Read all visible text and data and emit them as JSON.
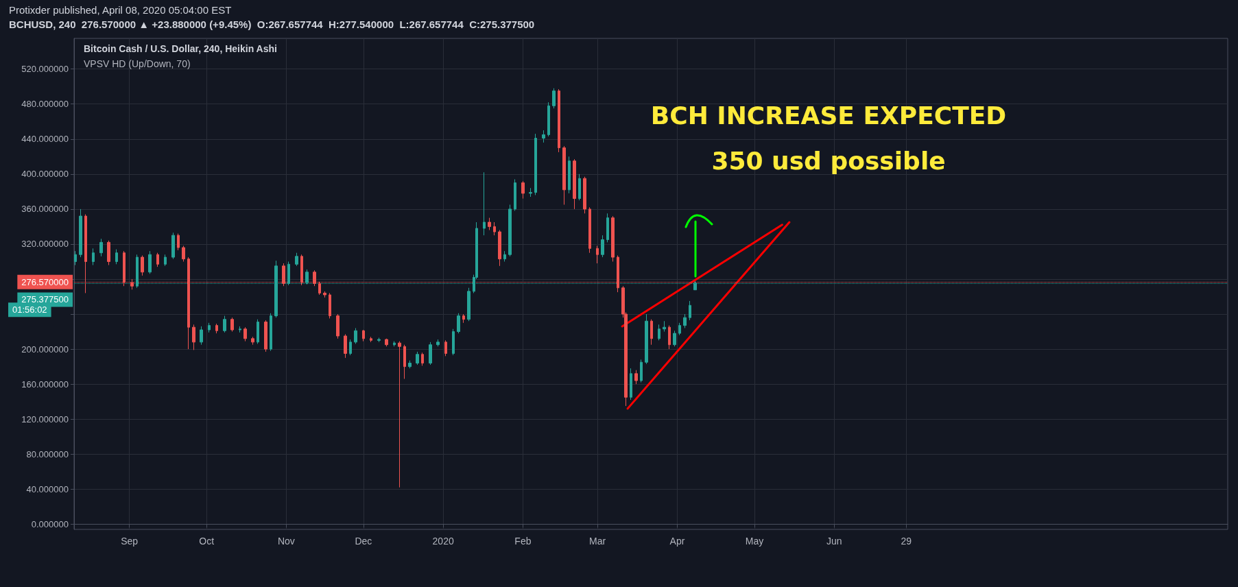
{
  "chart_data": {
    "type": "candlestick",
    "title": "Protixder published, April 08, 2020 05:04:00 EST",
    "subtitle": "BCHUSD, 240  276.570000 ▲ +23.880000 (+9.45%)  O:267.657744  H:277.540000  L:267.657744  C:275.377500",
    "annotations": [
      "Bitcoin Cash / U.S. Dollar, 240, Heikin Ashi",
      "VPSV HD (Up/Down, 70)",
      "BCH INCREASE EXPECTED",
      "350 usd possible",
      "01:56:02"
    ],
    "xlim": [
      "2019-08-10T12:00",
      "2020-11-01"
    ],
    "xticks": [
      {
        "value": "2019-09-01",
        "label": "Sep"
      },
      {
        "value": "2019-10-01",
        "label": "Oct"
      },
      {
        "value": "2019-11-01",
        "label": "Nov"
      },
      {
        "value": "2019-12-01",
        "label": "Dec"
      },
      {
        "value": "2020-01-01",
        "label": "2020"
      },
      {
        "value": "2020-02-01",
        "label": "Feb"
      },
      {
        "value": "2020-03-01",
        "label": "Mar"
      },
      {
        "value": "2020-04-01",
        "label": "Apr"
      },
      {
        "value": "2020-05-01",
        "label": "May"
      },
      {
        "value": "2020-06-01",
        "label": "Jun"
      },
      {
        "value": "2020-06-29",
        "label": "29"
      }
    ],
    "ylim": [
      -6,
      555
    ],
    "yticks": [
      {
        "value": 0,
        "label": "0.000000"
      },
      {
        "value": 40,
        "label": "40.000000"
      },
      {
        "value": 80,
        "label": "80.000000"
      },
      {
        "value": 120,
        "label": "120.000000"
      },
      {
        "value": 160,
        "label": "160.000000"
      },
      {
        "value": 200,
        "label": "200.000000"
      },
      {
        "value": 240,
        "label": null
      },
      {
        "value": 280,
        "label": null
      },
      {
        "value": 320,
        "label": "320.000000"
      },
      {
        "value": 360,
        "label": "360.000000"
      },
      {
        "value": 400,
        "label": "400.000000"
      },
      {
        "value": 440,
        "label": "440.000000"
      },
      {
        "value": 480,
        "label": "480.000000"
      },
      {
        "value": 520,
        "label": "520.000000"
      }
    ],
    "grid": true,
    "ref_lines": [
      {
        "axis": "y",
        "value": 276.57,
        "label": "276.570000",
        "color": "#ef5350",
        "line_style": "dotted"
      },
      {
        "axis": "y",
        "value": 275.3775,
        "label": "275.377500",
        "color": "#26a69a",
        "line_style": "dotted"
      }
    ],
    "series": [
      {
        "x": [
          "2019-08-11",
          "2019-08-13",
          "2019-08-15",
          "2019-08-18",
          "2019-08-21",
          "2019-08-24",
          "2019-08-27",
          "2019-08-30",
          "2019-09-02",
          "2019-09-04",
          "2019-09-06",
          "2019-09-09",
          "2019-09-12",
          "2019-09-15",
          "2019-09-18",
          "2019-09-20",
          "2019-09-22",
          "2019-09-24",
          "2019-09-26",
          "2019-09-29",
          "2019-10-02",
          "2019-10-05",
          "2019-10-08",
          "2019-10-11",
          "2019-10-14",
          "2019-10-16",
          "2019-10-19",
          "2019-10-21",
          "2019-10-24",
          "2019-10-26",
          "2019-10-28",
          "2019-10-31",
          "2019-11-02",
          "2019-11-05",
          "2019-11-07",
          "2019-11-09",
          "2019-11-12",
          "2019-11-14",
          "2019-11-16",
          "2019-11-18",
          "2019-11-21",
          "2019-11-24",
          "2019-11-26",
          "2019-11-28",
          "2019-12-01",
          "2019-12-04",
          "2019-12-07",
          "2019-12-10",
          "2019-12-13",
          "2019-12-15",
          "2019-12-17",
          "2019-12-19",
          "2019-12-22",
          "2019-12-24",
          "2019-12-27",
          "2019-12-30",
          "2020-01-02",
          "2020-01-05",
          "2020-01-07",
          "2020-01-09",
          "2020-01-11",
          "2020-01-13",
          "2020-01-14",
          "2020-01-17",
          "2020-01-19",
          "2020-01-21",
          "2020-01-23",
          "2020-01-25",
          "2020-01-27",
          "2020-01-29",
          "2020-02-01",
          "2020-02-04",
          "2020-02-06",
          "2020-02-09",
          "2020-02-11",
          "2020-02-13",
          "2020-02-15",
          "2020-02-17",
          "2020-02-19",
          "2020-02-21",
          "2020-02-23",
          "2020-02-25",
          "2020-02-27",
          "2020-03-01",
          "2020-03-03",
          "2020-03-05",
          "2020-03-07",
          "2020-03-09",
          "2020-03-11",
          "2020-03-12",
          "2020-03-14",
          "2020-03-16",
          "2020-03-18",
          "2020-03-20",
          "2020-03-22",
          "2020-03-25",
          "2020-03-27",
          "2020-03-29",
          "2020-03-31",
          "2020-04-02",
          "2020-04-04",
          "2020-04-06",
          "2020-04-08"
        ],
        "ohlc": [
          [
            300,
            312,
            296,
            308
          ],
          [
            308,
            360,
            305,
            352
          ],
          [
            352,
            354,
            264,
            300
          ],
          [
            300,
            315,
            296,
            310
          ],
          [
            310,
            326,
            306,
            322
          ],
          [
            322,
            324,
            296,
            300
          ],
          [
            300,
            314,
            297,
            310
          ],
          [
            310,
            312,
            272,
            276
          ],
          [
            276,
            280,
            268,
            272
          ],
          [
            272,
            308,
            270,
            305
          ],
          [
            305,
            307,
            284,
            288
          ],
          [
            288,
            312,
            286,
            308
          ],
          [
            308,
            310,
            294,
            297
          ],
          [
            297,
            308,
            295,
            305
          ],
          [
            305,
            333,
            303,
            330
          ],
          [
            330,
            332,
            313,
            316
          ],
          [
            316,
            318,
            300,
            303
          ],
          [
            303,
            305,
            200,
            225
          ],
          [
            225,
            228,
            199,
            208
          ],
          [
            208,
            226,
            205,
            222
          ],
          [
            222,
            230,
            219,
            227
          ],
          [
            227,
            229,
            218,
            221
          ],
          [
            221,
            238,
            219,
            234
          ],
          [
            234,
            236,
            220,
            222
          ],
          [
            222,
            226,
            219,
            223
          ],
          [
            223,
            225,
            209,
            212
          ],
          [
            212,
            214,
            205,
            208
          ],
          [
            208,
            234,
            206,
            231
          ],
          [
            231,
            233,
            197,
            200
          ],
          [
            200,
            241,
            198,
            238
          ],
          [
            238,
            301,
            236,
            295
          ],
          [
            295,
            298,
            272,
            275
          ],
          [
            275,
            300,
            273,
            297
          ],
          [
            297,
            310,
            295,
            306
          ],
          [
            306,
            308,
            273,
            276
          ],
          [
            276,
            291,
            274,
            288
          ],
          [
            288,
            290,
            272,
            275
          ],
          [
            275,
            277,
            262,
            264
          ],
          [
            264,
            266,
            259,
            262
          ],
          [
            262,
            264,
            235,
            238
          ],
          [
            238,
            240,
            212,
            215
          ],
          [
            215,
            217,
            190,
            195
          ],
          [
            195,
            211,
            193,
            208
          ],
          [
            208,
            224,
            206,
            221
          ],
          [
            221,
            222,
            209,
            212
          ],
          [
            212,
            214,
            208,
            210
          ],
          [
            210,
            213,
            208,
            211
          ],
          [
            211,
            212,
            203,
            205
          ],
          [
            205,
            209,
            203,
            207
          ],
          [
            207,
            209,
            42,
            203
          ],
          [
            203,
            205,
            166,
            180
          ],
          [
            180,
            187,
            178,
            184
          ],
          [
            184,
            197,
            182,
            194
          ],
          [
            194,
            196,
            181,
            184
          ],
          [
            184,
            208,
            182,
            205
          ],
          [
            205,
            211,
            203,
            208
          ],
          [
            208,
            210,
            192,
            195
          ],
          [
            195,
            223,
            193,
            220
          ],
          [
            220,
            241,
            218,
            238
          ],
          [
            238,
            240,
            230,
            234
          ],
          [
            234,
            270,
            232,
            266
          ],
          [
            266,
            285,
            264,
            282
          ],
          [
            282,
            345,
            280,
            338
          ],
          [
            338,
            402,
            330,
            345
          ],
          [
            345,
            350,
            336,
            340
          ],
          [
            340,
            345,
            330,
            334
          ],
          [
            334,
            336,
            295,
            303
          ],
          [
            303,
            312,
            300,
            308
          ],
          [
            308,
            365,
            306,
            360
          ],
          [
            360,
            394,
            358,
            390
          ],
          [
            390,
            392,
            372,
            378
          ],
          [
            378,
            384,
            374,
            379
          ],
          [
            379,
            446,
            376,
            441
          ],
          [
            441,
            450,
            436,
            445
          ],
          [
            445,
            482,
            443,
            478
          ],
          [
            478,
            498,
            475,
            495
          ],
          [
            495,
            497,
            425,
            430
          ],
          [
            430,
            432,
            365,
            382
          ],
          [
            382,
            420,
            378,
            415
          ],
          [
            415,
            417,
            360,
            372
          ],
          [
            372,
            400,
            370,
            395
          ],
          [
            395,
            397,
            355,
            360
          ],
          [
            360,
            362,
            310,
            315
          ],
          [
            315,
            318,
            298,
            308
          ],
          [
            308,
            330,
            305,
            325
          ],
          [
            325,
            355,
            322,
            350
          ],
          [
            350,
            352,
            300,
            305
          ],
          [
            305,
            307,
            265,
            270
          ],
          [
            270,
            272,
            236,
            240
          ],
          [
            240,
            242,
            135,
            145
          ],
          [
            145,
            178,
            142,
            172
          ],
          [
            172,
            176,
            160,
            164
          ],
          [
            164,
            188,
            162,
            185
          ],
          [
            185,
            240,
            183,
            232
          ],
          [
            232,
            234,
            205,
            212
          ],
          [
            212,
            228,
            210,
            223
          ],
          [
            223,
            232,
            220,
            225
          ],
          [
            225,
            227,
            200,
            205
          ],
          [
            205,
            221,
            203,
            218
          ],
          [
            218,
            230,
            216,
            227
          ],
          [
            227,
            240,
            224,
            236
          ],
          [
            236,
            255,
            233,
            250
          ],
          [
            267.66,
            277.54,
            267.66,
            275.38
          ]
        ],
        "colors": [
          "#26a69a",
          "#26a69a",
          "#ef5350",
          "#26a69a",
          "#26a69a",
          "#ef5350",
          "#26a69a",
          "#ef5350",
          "#ef5350",
          "#26a69a",
          "#ef5350",
          "#26a69a",
          "#ef5350",
          "#26a69a",
          "#26a69a",
          "#ef5350",
          "#ef5350",
          "#ef5350",
          "#ef5350",
          "#26a69a",
          "#26a69a",
          "#ef5350",
          "#26a69a",
          "#ef5350",
          "#26a69a",
          "#ef5350",
          "#ef5350",
          "#26a69a",
          "#ef5350",
          "#26a69a",
          "#26a69a",
          "#ef5350",
          "#26a69a",
          "#26a69a",
          "#ef5350",
          "#26a69a",
          "#ef5350",
          "#ef5350",
          "#ef5350",
          "#ef5350",
          "#ef5350",
          "#ef5350",
          "#26a69a",
          "#26a69a",
          "#ef5350",
          "#ef5350",
          "#26a69a",
          "#ef5350",
          "#26a69a",
          "#ef5350",
          "#ef5350",
          "#26a69a",
          "#26a69a",
          "#ef5350",
          "#26a69a",
          "#26a69a",
          "#ef5350",
          "#26a69a",
          "#26a69a",
          "#ef5350",
          "#26a69a",
          "#26a69a",
          "#26a69a",
          "#26a69a",
          "#ef5350",
          "#ef5350",
          "#ef5350",
          "#26a69a",
          "#26a69a",
          "#26a69a",
          "#ef5350",
          "#26a69a",
          "#26a69a",
          "#26a69a",
          "#26a69a",
          "#26a69a",
          "#ef5350",
          "#ef5350",
          "#26a69a",
          "#ef5350",
          "#26a69a",
          "#ef5350",
          "#ef5350",
          "#ef5350",
          "#26a69a",
          "#26a69a",
          "#ef5350",
          "#ef5350",
          "#ef5350",
          "#ef5350",
          "#26a69a",
          "#ef5350",
          "#26a69a",
          "#26a69a",
          "#ef5350",
          "#26a69a",
          "#26a69a",
          "#ef5350",
          "#26a69a",
          "#26a69a",
          "#26a69a",
          "#26a69a",
          "#26a69a"
        ]
      },
      {
        "type": "line",
        "color": "#ff0000",
        "x": [
          "2020-03-10T14:00",
          "2020-05-11T19:00"
        ],
        "values": [
          226,
          342
        ]
      },
      {
        "type": "line",
        "color": "#ff0000",
        "x": [
          "2020-03-12T17:00",
          "2020-05-14T14:00"
        ],
        "values": [
          132,
          345
        ]
      }
    ]
  }
}
